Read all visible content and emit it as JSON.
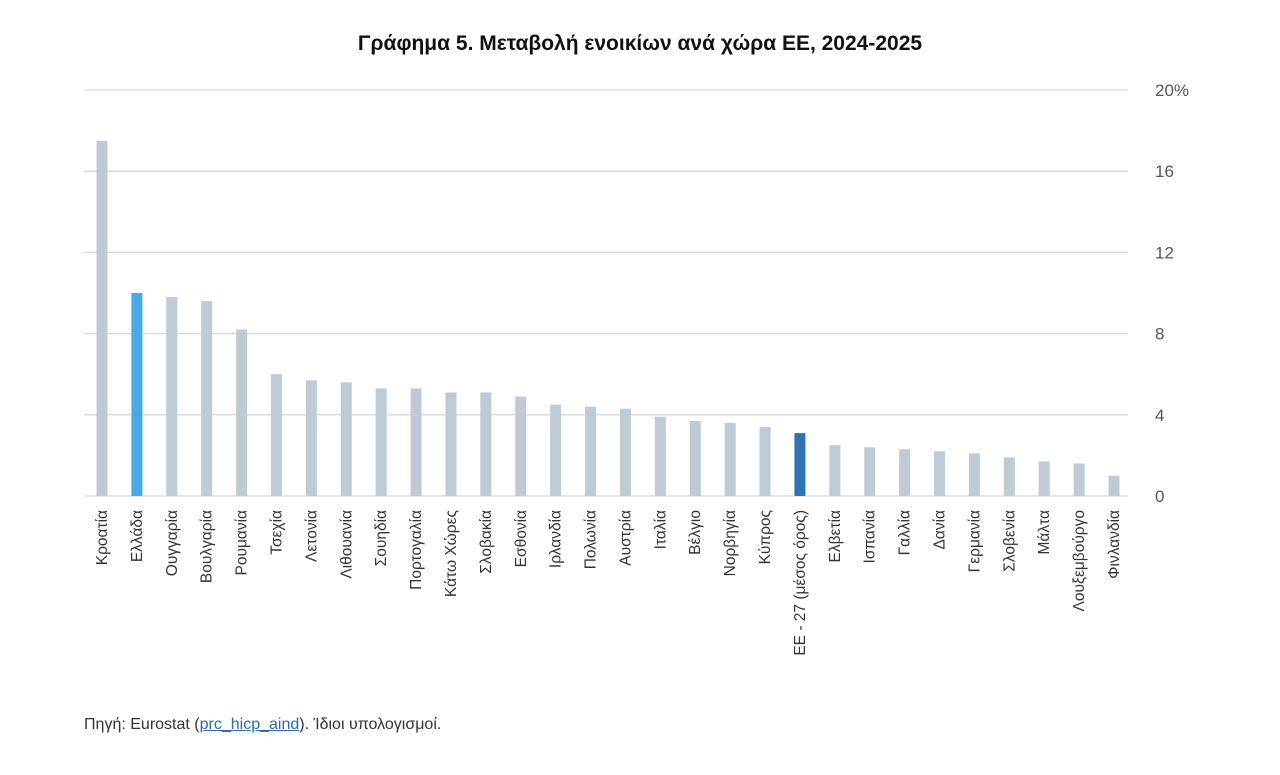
{
  "chart_data": {
    "type": "bar",
    "title": "Γράφημα 5. Μεταβολή ενοικίων ανά χώρα ΕΕ, 2024-2025",
    "categories": [
      "Κροατία",
      "Ελλάδα",
      "Ουγγαρία",
      "Βουλγαρία",
      "Ρουμανία",
      "Τσεχία",
      "Λετονία",
      "Λιθουανία",
      "Σουηδία",
      "Πορτογαλία",
      "Κάτω Χώρες",
      "Σλοβακία",
      "Εσθονία",
      "Ιρλανδία",
      "Πολωνία",
      "Αυστρία",
      "Ιταλία",
      "Βέλγιο",
      "Νορβηγία",
      "Κύπρος",
      "ΕΕ - 27 (μέσος όρος)",
      "Ελβετία",
      "Ισπανία",
      "Γαλλία",
      "Δανία",
      "Γερμανία",
      "Σλοβενία",
      "Μάλτα",
      "Λουξεμβούργο",
      "Φινλανδία"
    ],
    "values": [
      17.5,
      10.0,
      9.8,
      9.6,
      8.2,
      6.0,
      5.7,
      5.6,
      5.3,
      5.3,
      5.1,
      5.1,
      4.9,
      4.5,
      4.4,
      4.3,
      3.9,
      3.7,
      3.6,
      3.4,
      3.1,
      2.5,
      2.4,
      2.3,
      2.2,
      2.1,
      1.9,
      1.7,
      1.6,
      1.0
    ],
    "ylim": [
      0,
      20
    ],
    "yticks": [
      "0",
      "4",
      "8",
      "12",
      "16",
      "20%"
    ],
    "ytick_values": [
      0,
      4,
      8,
      12,
      16,
      20
    ],
    "y_axis_side": "right",
    "grid": true,
    "colors": {
      "default": "#bfcbd4",
      "highlight_greece": "#4aa8e6",
      "highlight_eu": "#2e74b5",
      "grid": "#d4d8dc"
    },
    "highlights": {
      "Ελλάδα": "highlight_greece",
      "ΕΕ - 27 (μέσος όρος)": "highlight_eu"
    }
  },
  "source": {
    "prefix": "Πηγή: Eurostat (",
    "link": "prc_hicp_aind",
    "suffix": "). Ίδιοι υπολογισμοί."
  }
}
